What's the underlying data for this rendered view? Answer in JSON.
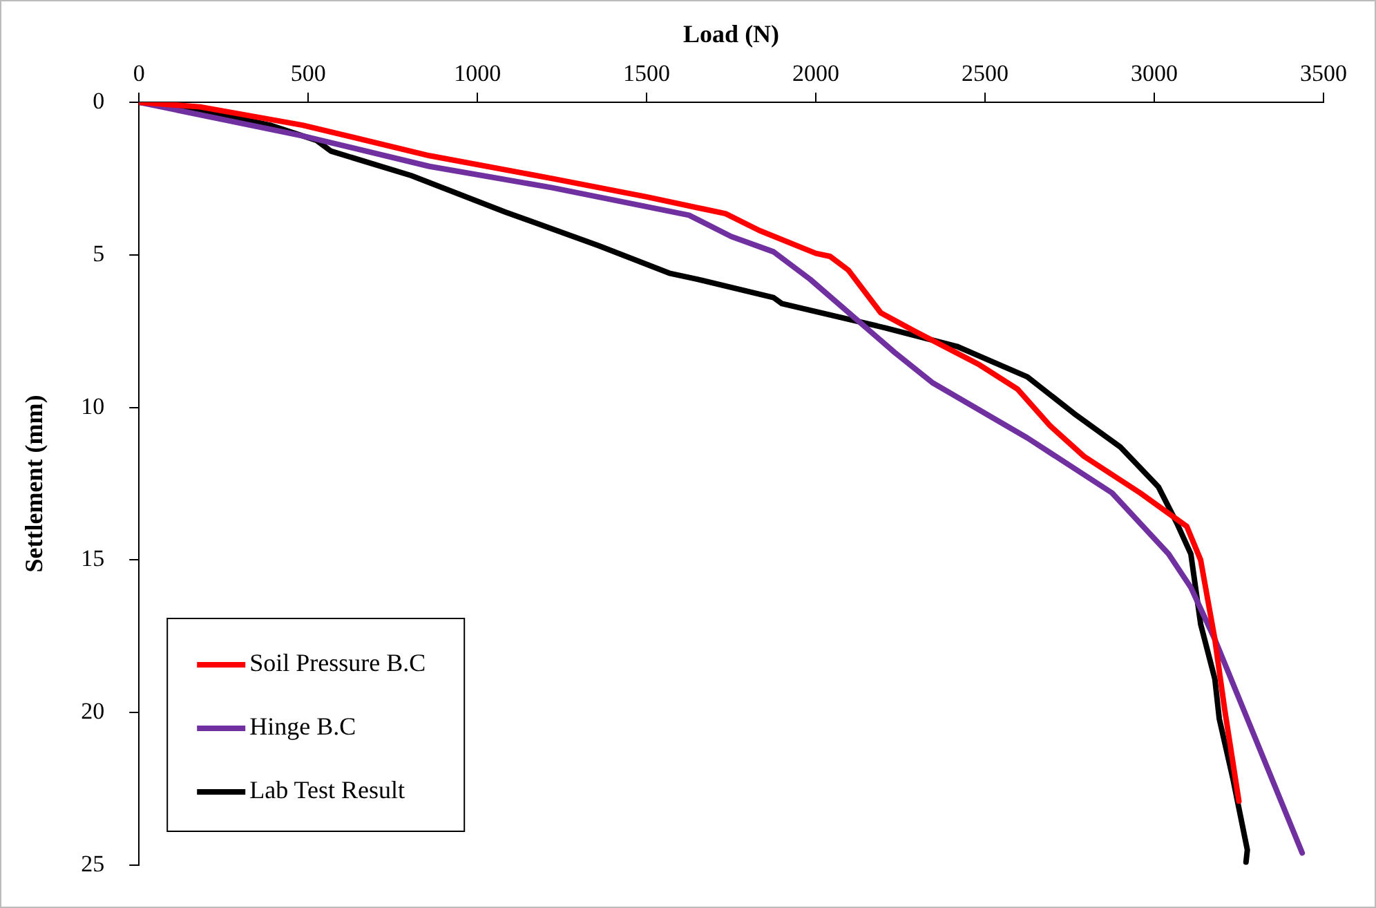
{
  "chart_data": {
    "type": "line",
    "xlabel": "Load (N)",
    "ylabel": "Settlement (mm)",
    "xlim": [
      0,
      3500
    ],
    "xticks": [
      0,
      500,
      1000,
      1500,
      2000,
      2500,
      3000,
      3500
    ],
    "ylim": [
      25,
      0
    ],
    "yticks": [
      0,
      5,
      10,
      15,
      20,
      25
    ],
    "grid": false,
    "legend": "bottom left",
    "marker": "none",
    "line_style": "solid",
    "series": [
      {
        "name": "Soil Pressure B.C",
        "color": "#ff0000",
        "x": [
          0,
          180,
          483,
          858,
          1221,
          1500,
          1733,
          1833,
          2000,
          2042,
          2096,
          2192,
          2292,
          2483,
          2596,
          2692,
          2792,
          2958,
          3096,
          3137,
          3179,
          3208,
          3250
        ],
        "values": [
          0,
          0.15,
          0.75,
          1.75,
          2.5,
          3.1,
          3.65,
          4.2,
          4.95,
          5.05,
          5.5,
          6.9,
          7.5,
          8.6,
          9.4,
          10.6,
          11.6,
          12.8,
          13.9,
          15,
          17.6,
          19.9,
          22.9
        ]
      },
      {
        "name": "Hinge B.C",
        "color": "#7030a0",
        "x": [
          0,
          483,
          858,
          1221,
          1625,
          1750,
          1875,
          1983,
          2233,
          2346,
          2625,
          2875,
          3042,
          3108,
          3179,
          3437
        ],
        "values": [
          0,
          1.1,
          2.1,
          2.8,
          3.7,
          4.4,
          4.9,
          5.8,
          8.2,
          9.2,
          11,
          12.8,
          14.8,
          15.9,
          17.6,
          24.6
        ]
      },
      {
        "name": "Lab Test Result",
        "color": "#000000",
        "x": [
          0,
          180,
          387,
          525,
          567,
          804,
          1083,
          1358,
          1567,
          1650,
          1875,
          1900,
          2054,
          2208,
          2417,
          2625,
          2763,
          2900,
          3012,
          3067,
          3108,
          3137,
          3179,
          3192,
          3233,
          3275,
          3271
        ],
        "values": [
          0,
          0.25,
          0.75,
          1.25,
          1.6,
          2.4,
          3.6,
          4.7,
          5.6,
          5.8,
          6.4,
          6.6,
          7,
          7.4,
          8,
          9,
          10.2,
          11.3,
          12.6,
          13.8,
          14.8,
          17.1,
          18.9,
          20.2,
          22.2,
          24.5,
          24.9
        ]
      }
    ]
  }
}
